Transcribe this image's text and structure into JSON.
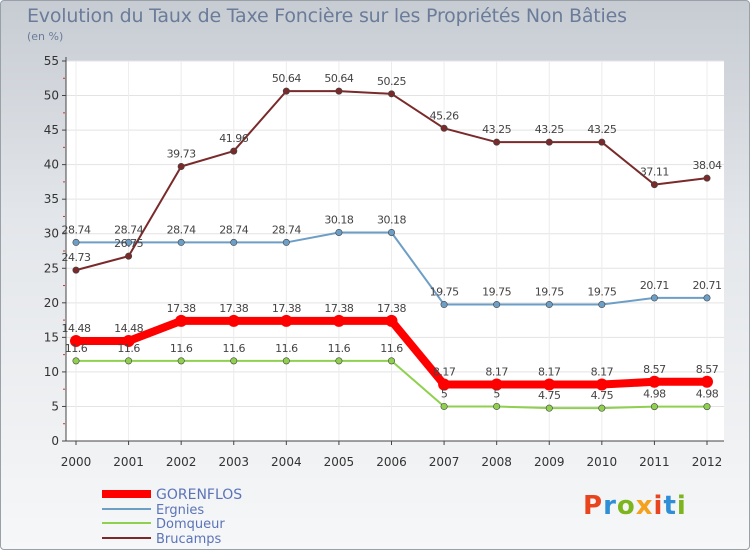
{
  "title": "Evolution du Taux de Taxe Foncière sur les Propriétés Non Bâties",
  "subtitle": "(en %)",
  "logo_text": "Proxiti",
  "logo_colors": [
    "#e8451e",
    "#2f8fd6",
    "#7cb51e",
    "#f4a11d"
  ],
  "chart_data": {
    "type": "line",
    "title": "Evolution du Taux de Taxe Foncière sur les Propriétés Non Bâties",
    "ylabel": "(en %)",
    "xlabel": "",
    "ylim": [
      0,
      55
    ],
    "yticks": [
      0,
      5,
      10,
      15,
      20,
      25,
      30,
      35,
      40,
      45,
      50,
      55
    ],
    "grid": true,
    "legend_position": "bottom-left",
    "x": [
      "2000",
      "2001",
      "2002",
      "2003",
      "2004",
      "2005",
      "2006",
      "2007",
      "2008",
      "2009",
      "2010",
      "2011",
      "2012"
    ],
    "series": [
      {
        "name": "GORENFLOS",
        "color": "#ff0000",
        "values": [
          14.48,
          14.48,
          17.38,
          17.38,
          17.38,
          17.38,
          17.38,
          8.17,
          8.17,
          8.17,
          8.17,
          8.57,
          8.57
        ],
        "labels": [
          "14.48",
          "14.48",
          "17.38",
          "17.38",
          "17.38",
          "17.38",
          "17.38",
          "8.17",
          "8.17",
          "8.17",
          "8.17",
          "8.57",
          "8.57"
        ]
      },
      {
        "name": "Ergnies",
        "color": "#6d9ec6",
        "values": [
          28.74,
          28.74,
          28.74,
          28.74,
          28.74,
          30.18,
          30.18,
          19.75,
          19.75,
          19.75,
          19.75,
          20.71,
          20.71
        ],
        "labels": [
          "28.74",
          "28.74",
          "28.74",
          "28.74",
          "28.74",
          "30.18",
          "30.18",
          "19.75",
          "19.75",
          "19.75",
          "19.75",
          "20.71",
          "20.71"
        ]
      },
      {
        "name": "Domqueur",
        "color": "#8fd14f",
        "values": [
          11.6,
          11.6,
          11.6,
          11.6,
          11.6,
          11.6,
          11.6,
          5,
          5,
          4.75,
          4.75,
          4.98,
          4.98
        ],
        "labels": [
          "11.6",
          "11.6",
          "11.6",
          "11.6",
          "11.6",
          "11.6",
          "11.6",
          "5",
          "5",
          "4.75",
          "4.75",
          "4.98",
          "4.98"
        ]
      },
      {
        "name": "Brucamps",
        "color": "#7a2a2a",
        "values": [
          24.73,
          26.75,
          39.73,
          41.96,
          50.64,
          50.64,
          50.25,
          45.26,
          43.25,
          43.25,
          43.25,
          37.11,
          38.04
        ],
        "labels": [
          "24.73",
          "26.75",
          "39.73",
          "41.96",
          "50.64",
          "50.64",
          "50.25",
          "45.26",
          "43.25",
          "43.25",
          "43.25",
          "37.11",
          "38.04"
        ]
      }
    ]
  }
}
